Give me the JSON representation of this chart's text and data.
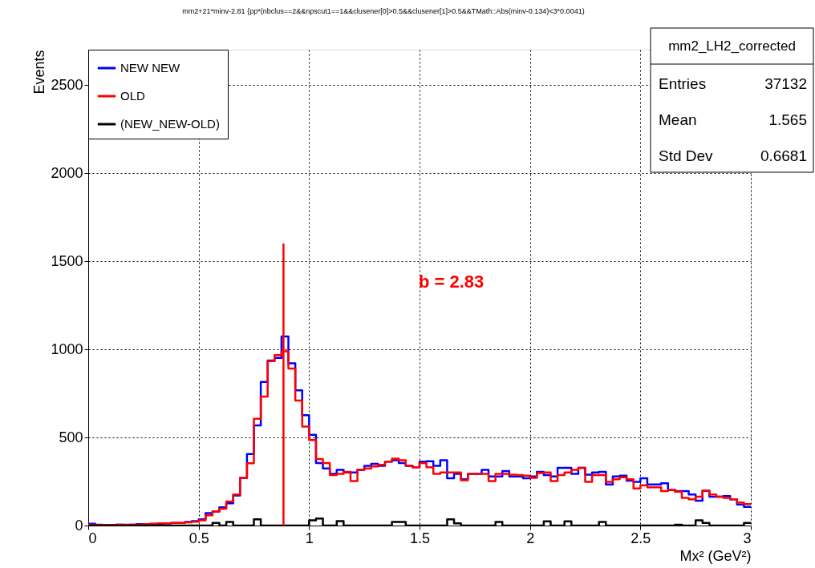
{
  "chart_data": {
    "type": "histogram",
    "title": "mm2+21*minv-2.81 {pp*(nbclus==2&&npscut1==1&&clusener[0]>0.5&&clusener[1]>0.5&&TMath::Abs(minv-0.134)<3*0.0041)",
    "xlabel": "Mx² (GeV²)",
    "ylabel": "Events",
    "bins": [
      0,
      0.03125,
      0.0625,
      0.09375,
      0.125,
      0.15625,
      0.1875,
      0.21875,
      0.25,
      0.28125,
      0.3125,
      0.34375,
      0.375,
      0.40625,
      0.4375,
      0.46875,
      0.5,
      0.53125,
      0.5625,
      0.59375,
      0.625,
      0.65625,
      0.6875,
      0.71875,
      0.75,
      0.78125,
      0.8125,
      0.84375,
      0.875,
      0.90625,
      0.9375,
      0.96875,
      1,
      1.03125,
      1.0625,
      1.09375,
      1.125,
      1.15625,
      1.1875,
      1.21875,
      1.25,
      1.28125,
      1.3125,
      1.34375,
      1.375,
      1.40625,
      1.4375,
      1.46875,
      1.5,
      1.53125,
      1.5625,
      1.59375,
      1.625,
      1.65625,
      1.6875,
      1.71875,
      1.75,
      1.78125,
      1.8125,
      1.84375,
      1.875,
      1.90625,
      1.9375,
      1.96875,
      2,
      2.03125,
      2.0625,
      2.09375,
      2.125,
      2.15625,
      2.1875,
      2.21875,
      2.25,
      2.28125,
      2.3125,
      2.34375,
      2.375,
      2.40625,
      2.4375,
      2.46875,
      2.5,
      2.53125,
      2.5625,
      2.59375,
      2.625,
      2.65625,
      2.6875,
      2.71875,
      2.75,
      2.78125,
      2.8125,
      2.84375,
      2.875,
      2.90625,
      2.9375,
      2.96875,
      3
    ],
    "series": [
      {
        "name": "NEW NEW",
        "color": "#0000ff",
        "values": [
          10,
          5,
          3,
          3,
          5,
          5,
          5,
          8,
          8,
          10,
          10,
          12,
          15,
          15,
          20,
          25,
          35,
          70,
          80,
          103,
          126,
          171,
          270,
          406,
          568,
          815,
          936,
          951,
          1073,
          921,
          767,
          626,
          515,
          354,
          324,
          293,
          316,
          301,
          301,
          316,
          339,
          350,
          339,
          362,
          370,
          354,
          339,
          331,
          362,
          365,
          339,
          370,
          268,
          293,
          263,
          293,
          293,
          316,
          278,
          278,
          309,
          278,
          278,
          268,
          278,
          304,
          286,
          278,
          327,
          327,
          293,
          327,
          289,
          301,
          304,
          233,
          278,
          283,
          255,
          248,
          268,
          233,
          233,
          240,
          202,
          195,
          195,
          176,
          141,
          198,
          164,
          164,
          167,
          149,
          119,
          106
        ]
      },
      {
        "name": "OLD",
        "color": "#ff0000",
        "values": [
          5,
          3,
          3,
          3,
          5,
          3,
          5,
          5,
          8,
          8,
          12,
          12,
          15,
          15,
          18,
          22,
          30,
          58,
          80,
          95,
          136,
          176,
          270,
          353,
          606,
          732,
          933,
          967,
          989,
          891,
          709,
          561,
          485,
          377,
          354,
          286,
          293,
          304,
          252,
          316,
          324,
          335,
          344,
          362,
          380,
          370,
          339,
          331,
          354,
          331,
          293,
          301,
          301,
          301,
          257,
          293,
          293,
          293,
          252,
          293,
          293,
          289,
          286,
          283,
          271,
          298,
          301,
          252,
          286,
          301,
          316,
          327,
          248,
          286,
          286,
          248,
          263,
          274,
          263,
          210,
          228,
          217,
          217,
          195,
          202,
          192,
          157,
          149,
          164,
          198,
          176,
          164,
          157,
          149,
          131,
          122
        ]
      },
      {
        "name": "(NEW_NEW-OLD)",
        "color": "#000000",
        "values": [
          0,
          0,
          0,
          0,
          0,
          0,
          0,
          0,
          0,
          0,
          0,
          0,
          0,
          0,
          0,
          0,
          0,
          0,
          15,
          0,
          20,
          0,
          0,
          0,
          35,
          0,
          0,
          0,
          0,
          0,
          0,
          0,
          30,
          40,
          0,
          0,
          25,
          0,
          0,
          0,
          0,
          0,
          0,
          0,
          20,
          20,
          0,
          0,
          0,
          0,
          0,
          0,
          35,
          12,
          0,
          0,
          0,
          0,
          0,
          20,
          0,
          0,
          0,
          0,
          0,
          0,
          24,
          0,
          0,
          24,
          0,
          0,
          0,
          0,
          20,
          0,
          0,
          0,
          0,
          0,
          0,
          0,
          0,
          0,
          0,
          5,
          0,
          0,
          30,
          15,
          0,
          0,
          0,
          0,
          0,
          15
        ]
      },
      {
        "type": "line",
        "color": "#ff0000",
        "x": [
          0.884,
          0.884
        ],
        "values": [
          0,
          1600
        ]
      }
    ],
    "xlim": [
      0,
      3
    ],
    "ylim": [
      0,
      2700
    ],
    "xticks": [
      0,
      0.5,
      1,
      1.5,
      2,
      2.5,
      3
    ],
    "yticks": [
      0,
      500,
      1000,
      1500,
      2000,
      2500
    ],
    "grid": true,
    "legend": "top left",
    "annotations": [
      "b = 2.83",
      "mm2_LH2_corrected",
      "Entries",
      "37132",
      "Mean",
      "1.565",
      "Std Dev",
      "0.6681"
    ]
  }
}
